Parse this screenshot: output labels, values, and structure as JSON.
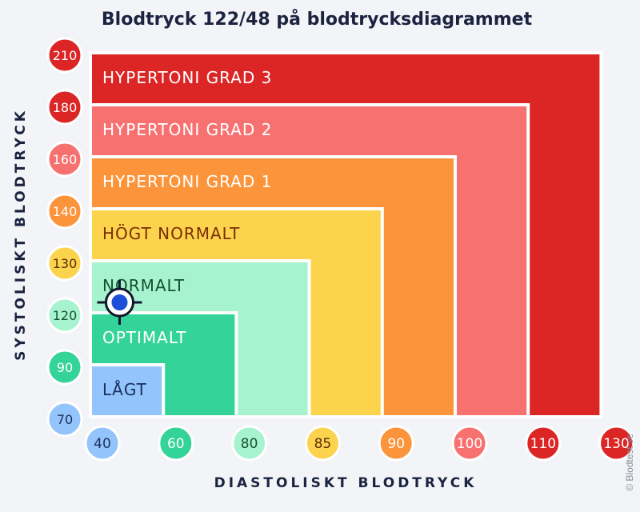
{
  "chart_data": {
    "type": "heatmap",
    "title": "Blodtryck 122/48 på blodtrycksdiagrammet",
    "xlabel": "DIASTOLISKT BLODTRYCK",
    "ylabel": "SYSTOLISKT BLODTRYCK",
    "x_ticks": [
      {
        "label": "40",
        "color": "#93c4fb",
        "text": "#1c2f5e"
      },
      {
        "label": "60",
        "color": "#34d399",
        "text": "#ffffff"
      },
      {
        "label": "80",
        "color": "#a7f3d0",
        "text": "#14532d"
      },
      {
        "label": "85",
        "color": "#fcd34d",
        "text": "#5c2c05"
      },
      {
        "label": "90",
        "color": "#fb943b",
        "text": "#ffffff"
      },
      {
        "label": "100",
        "color": "#f87171",
        "text": "#ffffff"
      },
      {
        "label": "110",
        "color": "#dc2626",
        "text": "#ffffff"
      },
      {
        "label": "130",
        "color": "#dc2626",
        "text": "#ffffff"
      }
    ],
    "y_ticks": [
      {
        "label": "70",
        "color": "#93c4fb",
        "text": "#1c2f5e"
      },
      {
        "label": "90",
        "color": "#34d399",
        "text": "#ffffff"
      },
      {
        "label": "120",
        "color": "#a7f3d0",
        "text": "#14532d"
      },
      {
        "label": "130",
        "color": "#fcd34d",
        "text": "#5c2c05"
      },
      {
        "label": "140",
        "color": "#fb943b",
        "text": "#ffffff"
      },
      {
        "label": "160",
        "color": "#f87171",
        "text": "#ffffff"
      },
      {
        "label": "180",
        "color": "#dc2626",
        "text": "#ffffff"
      },
      {
        "label": "210",
        "color": "#dc2626",
        "text": "#ffffff"
      }
    ],
    "zones": [
      {
        "label": "HYPERTONI GRAD 3",
        "x_to": 130,
        "y_to": 210,
        "color": "#dc2626",
        "text": "#ffffff"
      },
      {
        "label": "HYPERTONI GRAD 2",
        "x_to": 110,
        "y_to": 180,
        "color": "#f87171",
        "text": "#ffffff"
      },
      {
        "label": "HYPERTONI GRAD 1",
        "x_to": 100,
        "y_to": 160,
        "color": "#fb943b",
        "text": "#ffffff"
      },
      {
        "label": "HÖGT NORMALT",
        "x_to": 90,
        "y_to": 140,
        "color": "#fcd34d",
        "text": "#7a2f05"
      },
      {
        "label": "NORMALT",
        "x_to": 85,
        "y_to": 130,
        "color": "#a7f3d0",
        "text": "#14532d"
      },
      {
        "label": "OPTIMALT",
        "x_to": 80,
        "y_to": 120,
        "color": "#34d399",
        "text": "#ffffff"
      },
      {
        "label": "LÅGT",
        "x_to": 60,
        "y_to": 90,
        "color": "#93c4fb",
        "text": "#1c2f5e"
      }
    ],
    "marker": {
      "systolic": 122,
      "diastolic": 48,
      "color": "#1d4ed8"
    }
  },
  "credit": "© Blodtest.se"
}
